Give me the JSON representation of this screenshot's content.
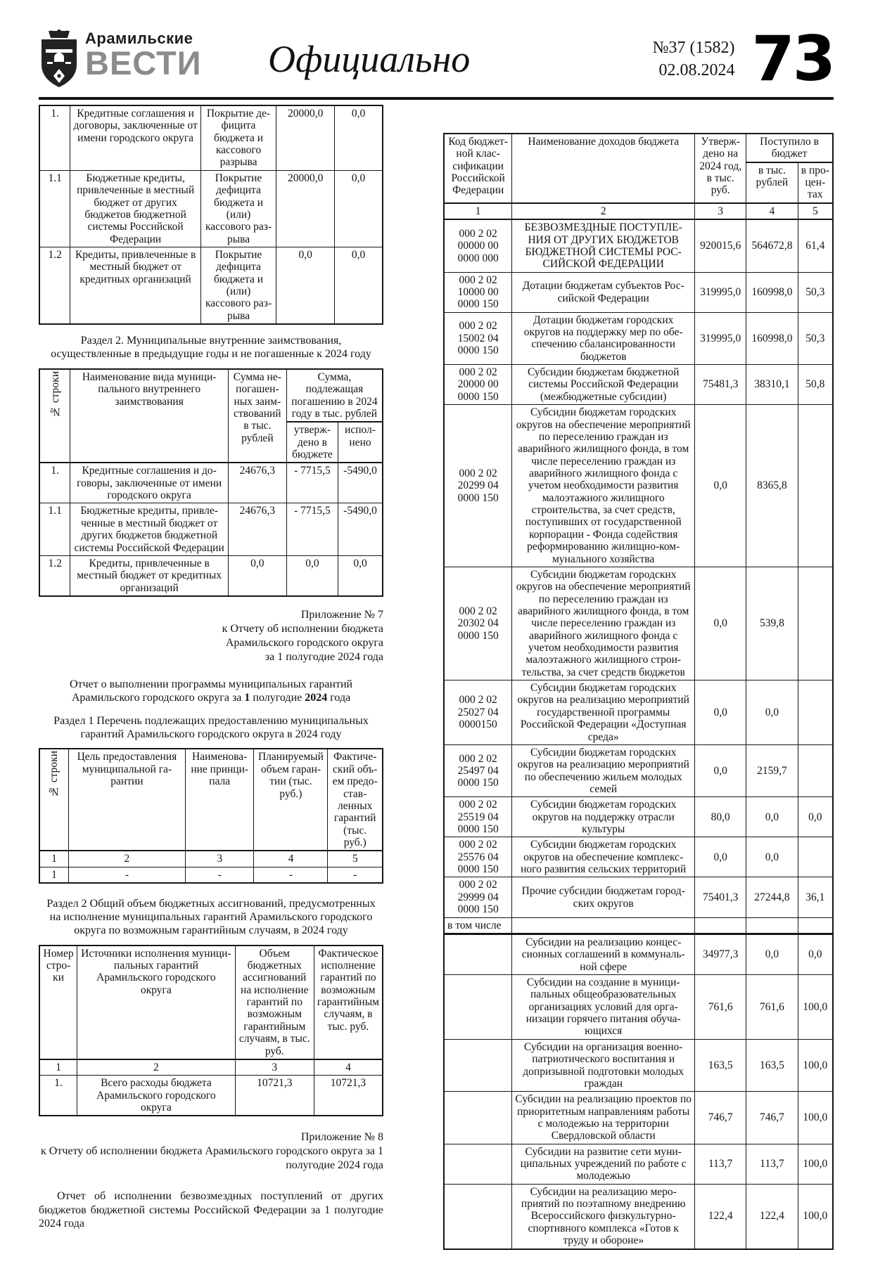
{
  "header": {
    "masthead_top": "Арамильские",
    "masthead_bottom": "ВЕСТИ",
    "section_title": "Официально",
    "issue_number": "№37 (1582)",
    "issue_date": "02.08.2024",
    "page_number": "73"
  },
  "left": {
    "table1": {
      "rows": [
        [
          "1.",
          "Кредитные соглашения и договоры, заключенные от имени городского округа",
          "Покрытие де­фицита бюдже­та и кассового разрыва",
          "20000,0",
          "0,0"
        ],
        [
          "1.1",
          "Бюджетные кредиты, привлеченные в местный бюджет от других бюджетов бюджетной системы Российской Федерации",
          "Покрытие дефицита бюд­жета и (или) кассового раз­рыва",
          "20000,0",
          "0,0"
        ],
        [
          "1.2",
          "Кредиты, привлеченные в местный бюджет от кредитных организаций",
          "Покрытие дефицита бюд­жета и (или) кассового раз­рыва",
          "0,0",
          "0,0"
        ]
      ]
    },
    "section2_heading": "Раздел 2. Муниципальные внутренние заимствования, осуществленные в предыдущие годы и не погашенные к 2024 году",
    "table2": {
      "h_num": "№ строки",
      "h_name": "Наименование вида муници­пального внутреннего заимствования",
      "h_outstanding": "Сумма не­погашен­ных заим­ствований в тыс. рублей",
      "h_due": "Сумма, подлежащая погашению в 2024 году в тыс. рублей",
      "h_approved": "утверж­дено в бюджете",
      "h_executed": "испол­нено",
      "rows": [
        [
          "1.",
          "Кредитные соглашения и до­говоры, заключенные от имени городского округа",
          "24676,3",
          "- 7715,5",
          "-5490,0"
        ],
        [
          "1.1",
          "Бюджетные кредиты, привле­ченные в местный бюджет от других бюджетов бюджетной системы Российской Федерации",
          "24676,3",
          "- 7715,5",
          "-5490,0"
        ],
        [
          "1.2",
          "Кредиты, привлеченные в местный бюджет от кредитных организаций",
          "0,0",
          "0,0",
          "0,0"
        ]
      ]
    },
    "appendix7": [
      "Приложение № 7",
      "к Отчету об исполнении бюджета",
      "Арамильского городского округа",
      "за 1 полугодие 2024 года"
    ],
    "report1_line1": "Отчет о выполнении программы муниципальных гарантий",
    "report1_l2_pre": "Арамильского городского округа за ",
    "report1_l2_b1": "1",
    "report1_l2_mid": " полугодие ",
    "report1_l2_b2": "2024",
    "report1_l2_post": " года",
    "section1_heading": "Раздел 1 Перечень подлежащих предоставлению муниципальных гарантий Арамильского городского округа в 2024 году",
    "table3": {
      "h_num": "№ строки",
      "h_goal": "Цель предоставления муниципальной га­рантии",
      "h_principal": "Наименова­ние принци­пала",
      "h_planned": "Планируемый объем гаран­тии (тыс. руб.)",
      "h_actual": "Фактиче­ский объ­ем предо­став­ленных гарантий (тыс. руб.)",
      "rows": [
        [
          "1",
          "2",
          "3",
          "4",
          "5"
        ],
        [
          "1",
          "-",
          "-",
          "-",
          "-"
        ]
      ]
    },
    "section2b_heading": "Раздел 2 Общий объем бюджетных ассигнований, предусмотренных на исполнение муниципальных гарантий Арамильского городского округа по возможным гарантийным случаям, в 2024 году",
    "table4": {
      "h_num": "Номер стро­ки",
      "h_sources": "Источники исполнения муници­пальных гарантий Арамильского городского округа",
      "h_volume": "Объем бюджетных ассигно­ваний на исполнение гарантий по возможным гарантийным случаям, в тыс. руб.",
      "h_actual": "Фактиче­ское ис­полнение гарантий по возможным гарантий­ным случа­ям, в тыс. руб.",
      "rows": [
        [
          "1",
          "2",
          "3",
          "4"
        ],
        [
          "1.",
          "Всего расходы бюджета Арамиль­ского городского округа",
          "10721,3",
          "10721,3"
        ]
      ]
    },
    "appendix8": [
      "Приложение № 8",
      "к Отчету об исполнении бюджета  Арамильского городского округа  за 1",
      "полугодие 2024 года"
    ],
    "final_report_text": "Отчет об исполнении безвозмездных поступлений от других бюджетов бюджетной системы Российской Федерации  за 1 полугодие 2024 года"
  },
  "right": {
    "table": {
      "h_code": "Код бюджет­ной клас­сификации Российской Федерации",
      "h_name": "Наименование доходов бюджета",
      "h_approved": "Утверж­дено на 2024 год, в тыс. руб.",
      "h_received": "Поступило в бюджет",
      "h_thousands": "в тыс. рублей",
      "h_percent": "в про­цен­тах",
      "rows": [
        {
          "cls": "numrow",
          "cells": [
            "1",
            "2",
            "3",
            "4",
            "5"
          ]
        },
        [
          "000 2 02 00000 00 0000 000",
          "БЕЗВОЗМЕЗДНЫЕ ПОСТУПЛЕ­НИЯ ОТ ДРУГИХ БЮДЖЕТОВ БЮДЖЕТНОЙ СИСТЕМЫ  РОС­СИЙСКОЙ ФЕДЕРАЦИИ",
          "920015,6",
          "564672,8",
          "61,4"
        ],
        [
          "000 2 02 10000 00 0000 150",
          "Дотации бюджетам субъектов Рос­сийской Федерации",
          "319995,0",
          "160998,0",
          "50,3"
        ],
        [
          "000 2 02 15002 04 0000 150",
          "Дотации бюджетам городских округов на поддержку мер по обе­спечению сбалансированности бюджетов",
          "319995,0",
          "160998,0",
          "50,3"
        ],
        [
          "000 2 02 20000 00 0000 150",
          "Субсидии бюджетам бюджетной системы Российской Федерации (межбюджетные субсидии)",
          "75481,3",
          "38310,1",
          "50,8"
        ],
        [
          "000 2 02 20299 04 0000 150",
          "Субсидии бюджетам городских округов на обеспечение меропри­ятий по переселению граждан из аварийного жилищного фонда, в том числе переселению граждан из аварийного жилищного фонда с учетом необходимости раз­вития малоэтажного жилищного строительства, за счет средств, поступивших от государственной корпорации - Фонда содействия реформированию жилищно-ком­мунального хозяйства",
          "0,0",
          "8365,8",
          ""
        ],
        [
          "000 2 02 20302 04 0000 150",
          "Субсидии бюджетам городских округов на обеспечение меропри­ятий по переселению граждан из аварийного жилищного фонда, в том числе переселению граждан из аварийного жилищного фонда с учетом необходимости развития малоэтажного жилищного строи­тельства, за счет средств бюджетов",
          "0,0",
          "539,8",
          ""
        ],
        [
          "000 2 02 25027 04 0000150",
          "Субсидии бюджетам городских округов на реализацию меропри­ятий государственной программы Российской Федерации «Доступ­ная среда»",
          "0,0",
          "0,0",
          ""
        ],
        [
          "000 2 02 25497 04 0000 150",
          "Субсидии бюджетам городских округов на реализацию мероприя­тий по обеспечению жильем моло­дых семей",
          "0,0",
          "2159,7",
          ""
        ],
        [
          "000 2 02 25519 04 0000 150",
          "Субсидии бюджетам городских округов на поддержку отрасли культуры",
          "80,0",
          "0,0",
          "0,0"
        ],
        [
          "000 2 02 25576 04 0000 150",
          "Субсидии бюджетам городских округов на обеспечение комплекс­ного развития сельских террито­рий",
          "0,0",
          "0,0",
          ""
        ],
        [
          "000 2 02 29999 04 0000 150",
          "Прочие субсидии бюджетам город­ских округов",
          "75401,3",
          "27244,8",
          "36,1"
        ],
        {
          "cls": "subhead thickline",
          "cells": [
            "в том числе",
            "",
            "",
            "",
            ""
          ]
        },
        [
          "",
          "Субсидии на реализацию концес­сионных соглашений в коммуналь­ной сфере",
          "34977,3",
          "0,0",
          "0,0"
        ],
        [
          "",
          "Субсидии на создание в муници­пальных общеобразовательных организациях условий для орга­низации горячего питания обуча­ющихся",
          "761,6",
          "761,6",
          "100,0"
        ],
        [
          "",
          "Субсидии на организация военно-патриотического воспитания и допризывной подготовки молодых граждан",
          "163,5",
          "163,5",
          "100,0"
        ],
        [
          "",
          "Субсидии на реализацию проектов по приоритетным направлениям работы с молодежью на террито­рии Свердловской области",
          "746,7",
          "746,7",
          "100,0"
        ],
        [
          "",
          "Субсидии на развитие сети муни­ципальных учреждений по работе с молодежью",
          "113,7",
          "113,7",
          "100,0"
        ],
        [
          "",
          "Субсидии на реализацию меро­приятий по поэтапному внедре­нию Всероссийского физкультур­но-спортивного комплекса «Готов к труду и обороне»",
          "122,4",
          "122,4",
          "100,0"
        ]
      ]
    }
  }
}
